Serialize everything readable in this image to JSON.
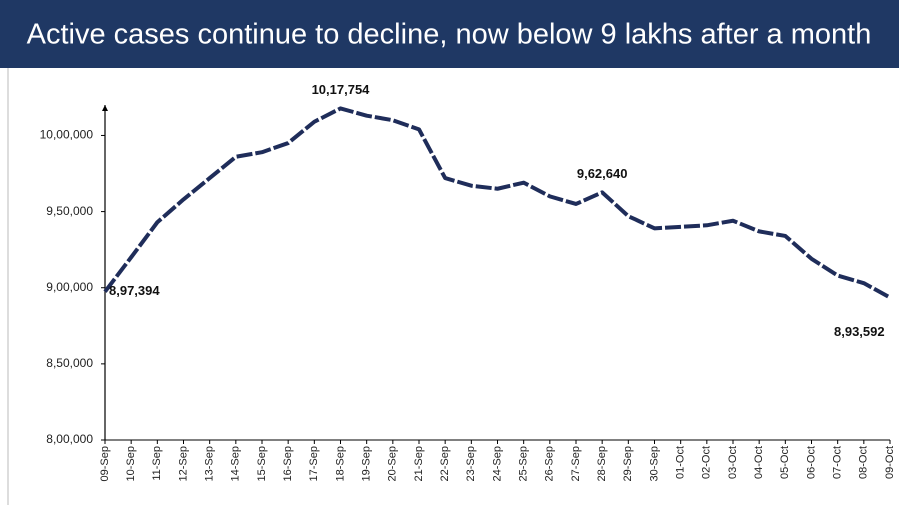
{
  "chart_data": {
    "type": "line",
    "title": "Active cases continue to decline, now below 9 lakhs after a month",
    "categories": [
      "09-Sep",
      "10-Sep",
      "11-Sep",
      "12-Sep",
      "13-Sep",
      "14-Sep",
      "15-Sep",
      "16-Sep",
      "17-Sep",
      "18-Sep",
      "19-Sep",
      "20-Sep",
      "21-Sep",
      "22-Sep",
      "23-Sep",
      "24-Sep",
      "25-Sep",
      "26-Sep",
      "27-Sep",
      "28-Sep",
      "29-Sep",
      "30-Sep",
      "01-Oct",
      "02-Oct",
      "03-Oct",
      "04-Oct",
      "05-Oct",
      "06-Oct",
      "07-Oct",
      "08-Oct",
      "09-Oct"
    ],
    "series": [
      {
        "color": "#1f2d5a",
        "values": [
          897394,
          920000,
          943000,
          958000,
          972000,
          986000,
          989000,
          995000,
          1009000,
          1017754,
          1013000,
          1010000,
          1004000,
          972000,
          967000,
          965000,
          969000,
          960000,
          955000,
          962640,
          947000,
          939000,
          940000,
          941000,
          944000,
          937000,
          934000,
          919000,
          908000,
          903000,
          893592
        ],
        "value_labels": [
          "8,97,394",
          null,
          null,
          null,
          null,
          null,
          null,
          null,
          null,
          "10,17,754",
          null,
          null,
          null,
          null,
          null,
          null,
          null,
          null,
          null,
          "9,62,640",
          null,
          null,
          null,
          null,
          null,
          null,
          null,
          null,
          null,
          null,
          "8,93,592"
        ]
      }
    ],
    "ylim": [
      800000,
      1020000
    ],
    "yticks": [
      {
        "value": 800000,
        "label": "8,00,000"
      },
      {
        "value": 850000,
        "label": "8,50,000"
      },
      {
        "value": 900000,
        "label": "9,00,000"
      },
      {
        "value": 950000,
        "label": "9,50,000"
      },
      {
        "value": 1000000,
        "label": "10,00,000"
      }
    ],
    "grid": false
  }
}
